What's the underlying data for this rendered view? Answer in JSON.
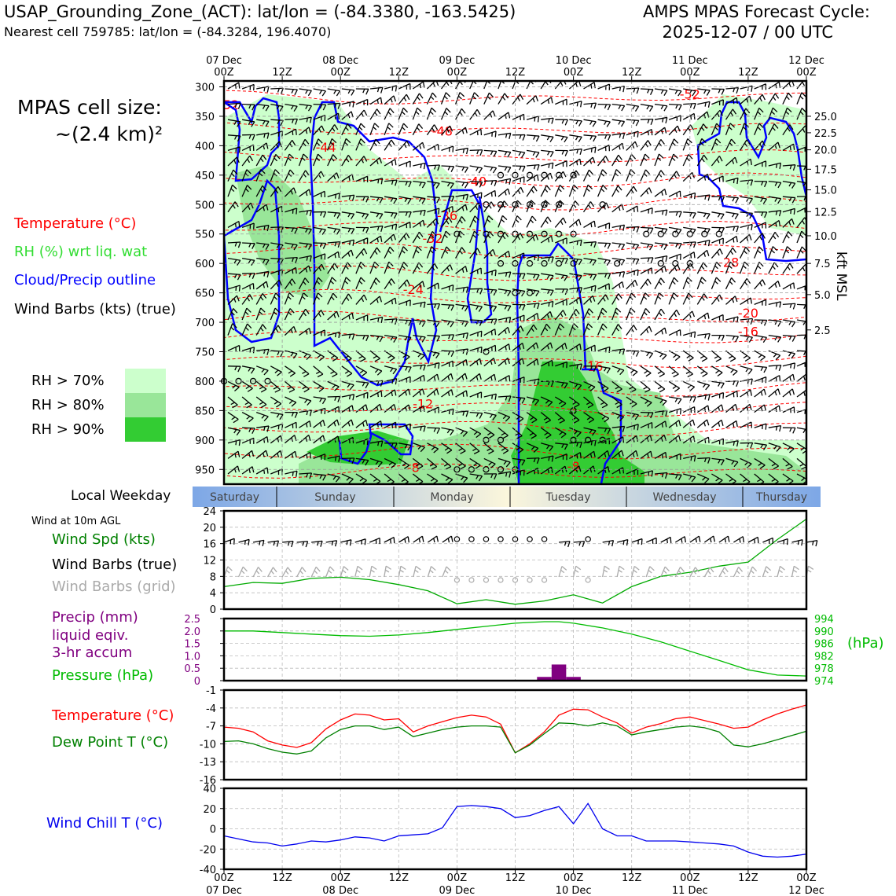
{
  "header": {
    "title_left": "USAP_Grounding_Zone_(ACT): lat/lon = (-84.3380, -163.5425)",
    "subtitle_left": "Nearest cell 759785: lat/lon = (-84.3284, 196.4070)",
    "title_right_1": "AMPS MPAS Forecast Cycle:",
    "title_right_2": "2025-12-07 / 00 UTC"
  },
  "legend": {
    "cell_size_1": "MPAS cell size:",
    "cell_size_2": "~(2.4 km)²",
    "temperature": "Temperature (°C)",
    "rh": "RH (%) wrt liq. wat",
    "cloud": "Cloud/Precip outline",
    "wind": "Wind Barbs (kts) (true)",
    "rh70": "RH > 70%",
    "rh80": "RH > 80%",
    "rh90": "RH > 90%"
  },
  "colors": {
    "temp": "#ff0000",
    "rh": "#33cc33",
    "cloud": "#0000ff",
    "precip": "#800080",
    "pressure": "#00bb00",
    "dew": "#008000",
    "chill": "#0000ee",
    "rh70": "#ccffcc",
    "rh80": "#99e699",
    "rh90": "#33cc33"
  },
  "time_axis": {
    "top_dates": [
      "07 Dec",
      "08 Dec",
      "09 Dec",
      "10 Dec",
      "11 Dec",
      "12 Dec"
    ],
    "ticks": [
      "00Z",
      "12Z",
      "00Z",
      "12Z",
      "00Z",
      "12Z",
      "00Z",
      "12Z",
      "00Z",
      "12Z",
      "00Z"
    ],
    "hours_total": 120
  },
  "weekday": {
    "label": "Local Weekday",
    "days": [
      "Saturday",
      "Sunday",
      "Monday",
      "Tuesday",
      "Wednesday",
      "Thursday"
    ]
  },
  "panel_labels": {
    "wind_10m": "Wind at 10m AGL",
    "wind_spd": "Wind Spd (kts)",
    "wind_barbs": "Wind Barbs (true)",
    "wind_barbs_grid": "Wind Barbs (grid)",
    "precip_1": "Precip (mm)",
    "precip_2": "liquid eqiv.",
    "precip_3": "3-hr accum",
    "pressure": "Pressure (hPa)",
    "hpa": "(hPa)",
    "temp": "Temperature (°C)",
    "dewpoint": "Dew Point T (°C)",
    "windchill": "Wind Chill T (°C)",
    "kft": "kft MSL"
  },
  "chart_data": [
    {
      "type": "heatmap",
      "name": "vertical-cross-section",
      "y_axis": {
        "label": "Pressure (hPa)",
        "ticks": [
          "300",
          "350",
          "400",
          "450",
          "500",
          "550",
          "600",
          "650",
          "700",
          "750",
          "800",
          "850",
          "900",
          "950"
        ],
        "ylim": [
          300,
          975
        ]
      },
      "right_axis": {
        "label": "kft MSL",
        "ticks": [
          {
            "label": "25.0",
            "p": 350
          },
          {
            "label": "22.5",
            "p": 378
          },
          {
            "label": "20.0",
            "p": 407
          },
          {
            "label": "17.5",
            "p": 440
          },
          {
            "label": "15.0",
            "p": 475
          },
          {
            "label": "12.5",
            "p": 512
          },
          {
            "label": "10.0",
            "p": 553
          },
          {
            "label": "7.5",
            "p": 600
          },
          {
            "label": "5.0",
            "p": 653
          },
          {
            "label": "2.5",
            "p": 713
          }
        ]
      },
      "temperature_isotherms": [
        {
          "label": "-52",
          "hour": 1,
          "p": 330
        },
        {
          "label": "-52",
          "hour": 96,
          "p": 312
        },
        {
          "label": "-48",
          "hour": 45,
          "p": 375
        },
        {
          "label": "-44",
          "hour": 21,
          "p": 402
        },
        {
          "label": "-40",
          "hour": 52,
          "p": 460
        },
        {
          "label": "-36",
          "hour": 46,
          "p": 518
        },
        {
          "label": "-32",
          "hour": 43,
          "p": 557
        },
        {
          "label": "-28",
          "hour": 104,
          "p": 598
        },
        {
          "label": "-24",
          "hour": 39,
          "p": 644
        },
        {
          "label": "-20",
          "hour": 108,
          "p": 684
        },
        {
          "label": "-16",
          "hour": 108,
          "p": 715
        },
        {
          "label": "-16",
          "hour": 76,
          "p": 775
        },
        {
          "label": "-12",
          "hour": 41,
          "p": 838
        },
        {
          "label": "-8",
          "hour": 39,
          "p": 946
        },
        {
          "label": "-8",
          "hour": 72,
          "p": 944
        }
      ],
      "precip_markers_hpa": [
        {
          "p": 800,
          "hours": [
            0,
            3,
            6,
            9
          ]
        },
        {
          "p": 450,
          "hours": [
            57,
            60,
            63,
            66,
            69,
            72
          ]
        },
        {
          "p": 500,
          "hours": [
            54,
            57,
            60,
            63,
            66,
            69,
            78
          ]
        },
        {
          "p": 550,
          "hours": [
            48,
            54,
            57,
            60,
            63,
            66,
            69,
            72,
            87,
            90,
            93,
            96,
            99,
            102
          ]
        },
        {
          "p": 600,
          "hours": [
            57,
            60,
            63,
            66,
            69,
            72,
            81,
            90,
            93,
            96
          ]
        },
        {
          "p": 650,
          "hours": [
            60,
            63
          ]
        },
        {
          "p": 750,
          "hours": [
            54
          ]
        },
        {
          "p": 850,
          "hours": [
            72
          ]
        },
        {
          "p": 900,
          "hours": [
            54,
            57,
            72,
            75,
            78
          ]
        },
        {
          "p": 950,
          "hours": [
            48,
            51,
            54,
            57,
            60
          ]
        }
      ]
    },
    {
      "type": "line",
      "name": "wind-10m",
      "ylim": [
        0,
        24
      ],
      "yticks": [
        "0",
        "4",
        "8",
        "12",
        "16",
        "20",
        "24"
      ],
      "series": [
        {
          "name": "Wind Spd (kts)",
          "color": "#00aa00",
          "x": [
            0,
            6,
            12,
            18,
            24,
            30,
            36,
            42,
            48,
            54,
            60,
            66,
            72,
            78,
            84,
            90,
            96,
            102,
            108,
            114,
            120
          ],
          "values": [
            5.5,
            6.5,
            6.3,
            7.5,
            7.8,
            7.2,
            6.0,
            4.5,
            1.3,
            2.3,
            1.2,
            2.0,
            3.5,
            1.5,
            5.5,
            8.0,
            9.0,
            10.5,
            11.5,
            17.0,
            22.0
          ]
        }
      ],
      "calm_circles_hours": [
        48,
        51,
        54,
        57,
        60,
        63,
        66,
        75
      ]
    },
    {
      "type": "bar",
      "name": "precip-pressure",
      "precip": {
        "ylim": [
          0,
          2.5
        ],
        "yticks": [
          "0",
          "0.5",
          "1.0",
          "1.5",
          "2.0",
          "2.5"
        ],
        "bars": [
          {
            "hour": 66,
            "value": 0.15
          },
          {
            "hour": 69,
            "value": 0.65
          },
          {
            "hour": 72,
            "value": 0.15
          }
        ]
      },
      "pressure": {
        "ylim": [
          974,
          994
        ],
        "yticks": [
          "974",
          "978",
          "982",
          "986",
          "990",
          "994"
        ],
        "x": [
          0,
          6,
          12,
          18,
          24,
          30,
          36,
          42,
          48,
          54,
          60,
          66,
          69,
          72,
          78,
          84,
          90,
          96,
          102,
          108,
          114,
          120
        ],
        "values": [
          990,
          990,
          989.5,
          989,
          988.5,
          988.3,
          988.7,
          989.5,
          990.5,
          991.5,
          992.5,
          993.0,
          993.0,
          992.5,
          991.0,
          989.0,
          986.5,
          983.5,
          980.5,
          977.5,
          975.8,
          975.5
        ]
      }
    },
    {
      "type": "line",
      "name": "temperature",
      "ylim": [
        -16,
        -1
      ],
      "yticks": [
        "-16",
        "-13",
        "-10",
        "-7",
        "-4",
        "-1"
      ],
      "series": [
        {
          "name": "Temperature (°C)",
          "color": "#ff0000",
          "x": [
            0,
            3,
            6,
            9,
            12,
            15,
            18,
            21,
            24,
            27,
            30,
            33,
            36,
            39,
            42,
            45,
            48,
            51,
            54,
            57,
            60,
            63,
            66,
            69,
            72,
            75,
            78,
            81,
            84,
            87,
            90,
            93,
            96,
            99,
            102,
            105,
            108,
            111,
            114,
            117,
            120
          ],
          "values": [
            -7.2,
            -7.4,
            -8,
            -9.5,
            -10.2,
            -10.6,
            -9.8,
            -7.5,
            -6,
            -5,
            -5.2,
            -6,
            -5.8,
            -8,
            -7,
            -6.3,
            -5.6,
            -5.2,
            -5.5,
            -6.7,
            -11.5,
            -10,
            -8,
            -5.2,
            -4.2,
            -4.3,
            -5.5,
            -6.5,
            -8.2,
            -7.2,
            -6.6,
            -5.8,
            -5.5,
            -6.1,
            -6.7,
            -7.4,
            -7.2,
            -6.0,
            -5.0,
            -4.2,
            -3.5
          ]
        },
        {
          "name": "Dew Point T (°C)",
          "color": "#008000",
          "x": [
            0,
            3,
            6,
            9,
            12,
            15,
            18,
            21,
            24,
            27,
            30,
            33,
            36,
            39,
            42,
            45,
            48,
            51,
            54,
            57,
            60,
            63,
            66,
            69,
            72,
            75,
            78,
            81,
            84,
            87,
            90,
            93,
            96,
            99,
            102,
            105,
            108,
            111,
            114,
            117,
            120
          ],
          "values": [
            -9.6,
            -9.5,
            -10,
            -10.8,
            -11.4,
            -11.7,
            -11.2,
            -9,
            -7.6,
            -7,
            -7,
            -7.6,
            -7.2,
            -8.8,
            -8.2,
            -7.6,
            -7.2,
            -7,
            -7,
            -7.2,
            -11.5,
            -10.2,
            -8.3,
            -6.5,
            -6.6,
            -7,
            -6.5,
            -7,
            -8.5,
            -8,
            -7.6,
            -7.2,
            -7.0,
            -7.3,
            -8.0,
            -10.2,
            -10.5,
            -10,
            -9.3,
            -8.6,
            -7.9
          ]
        }
      ]
    },
    {
      "type": "line",
      "name": "wind-chill",
      "ylim": [
        -40,
        40
      ],
      "yticks": [
        "-40",
        "-20",
        "0",
        "20",
        "40"
      ],
      "series": [
        {
          "name": "Wind Chill T (°C)",
          "color": "#0000ee",
          "x": [
            0,
            3,
            6,
            9,
            12,
            15,
            18,
            21,
            24,
            27,
            30,
            33,
            36,
            39,
            42,
            45,
            48,
            51,
            54,
            57,
            60,
            63,
            66,
            69,
            72,
            75,
            78,
            81,
            84,
            87,
            90,
            93,
            96,
            99,
            102,
            105,
            108,
            111,
            114,
            117,
            120
          ],
          "values": [
            -7,
            -10,
            -13,
            -14,
            -17,
            -15,
            -12,
            -13,
            -11,
            -8,
            -9,
            -12,
            -7,
            -6,
            -5,
            1,
            22,
            23,
            22,
            20,
            11,
            13,
            18,
            22,
            5,
            25,
            0,
            -7,
            -7,
            -12,
            -12,
            -12,
            -13,
            -14,
            -15,
            -17,
            -23,
            -27,
            -28,
            -27,
            -25
          ]
        }
      ]
    }
  ]
}
